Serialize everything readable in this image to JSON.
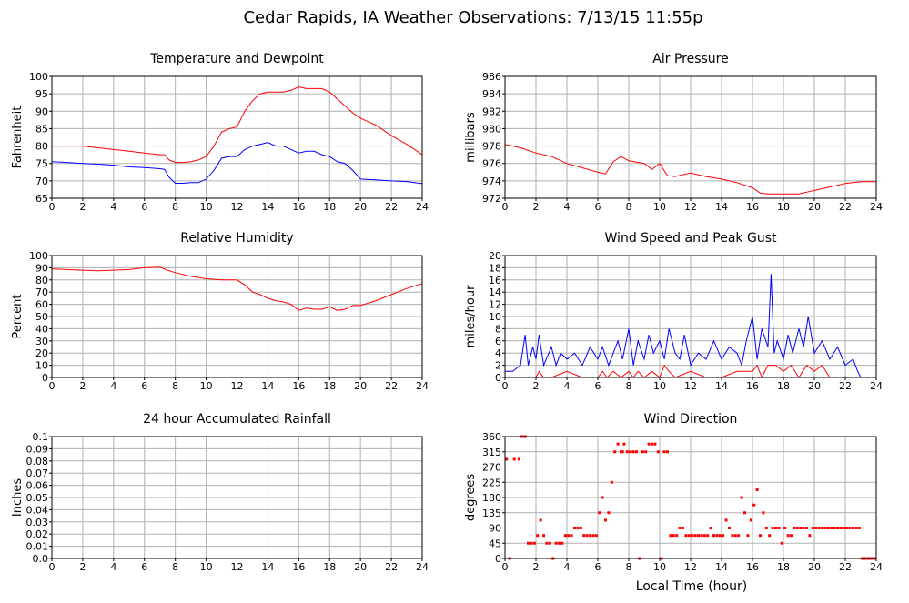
{
  "title": "Cedar Rapids, IA Weather Observations: 7/13/15 11:55p",
  "x_axis_label": "Local Time (hour)",
  "colors": {
    "red": "#ff0000",
    "blue": "#0000ff",
    "grid": "#b0b0b0",
    "frame": "#000000"
  },
  "chart_data": [
    {
      "type": "line",
      "title": "Temperature and Dewpoint",
      "ylabel": "Fahrenheit",
      "xlim": [
        0,
        24
      ],
      "ylim": [
        65,
        100
      ],
      "x_ticks": [
        0,
        2,
        4,
        6,
        8,
        10,
        12,
        14,
        16,
        18,
        20,
        22,
        24
      ],
      "y_ticks": [
        65,
        70,
        75,
        80,
        85,
        90,
        95,
        100
      ],
      "grid": true,
      "series": [
        {
          "color": "red",
          "x": [
            0,
            1,
            2,
            3,
            4,
            5,
            6,
            7,
            7.3,
            7.6,
            8,
            8.5,
            9,
            9.5,
            10,
            10.5,
            11,
            11.5,
            12,
            12.5,
            13,
            13.5,
            14,
            14.5,
            15,
            15.5,
            16,
            16.5,
            17,
            17.5,
            18,
            18.5,
            19,
            19.5,
            20,
            21,
            22,
            23,
            24
          ],
          "values": [
            80,
            80,
            80,
            79.5,
            79,
            78.5,
            78,
            77.5,
            77.5,
            76,
            75.3,
            75.3,
            75.5,
            76,
            77,
            80,
            84,
            85,
            85.5,
            90,
            93,
            95,
            95.5,
            95.5,
            95.5,
            96,
            97,
            96.5,
            96.5,
            96.5,
            95.5,
            93.5,
            91.5,
            89.5,
            88,
            86,
            83,
            80.5,
            77.5
          ]
        },
        {
          "color": "blue",
          "x": [
            0,
            1,
            2,
            3,
            4,
            5,
            6,
            7,
            7.3,
            7.6,
            8,
            8.5,
            9,
            9.5,
            10,
            10.5,
            11,
            11.5,
            12,
            12.5,
            13,
            13.5,
            14,
            14.5,
            15,
            15.5,
            16,
            16.5,
            17,
            17.5,
            18,
            18.5,
            19,
            19.5,
            20,
            21,
            22,
            23,
            24
          ],
          "values": [
            75.5,
            75.3,
            75,
            74.8,
            74.5,
            74,
            73.8,
            73.5,
            73.3,
            71,
            69.3,
            69.3,
            69.5,
            69.5,
            70.5,
            73,
            76.5,
            77,
            77,
            79,
            80,
            80.5,
            81,
            80,
            80,
            79,
            78,
            78.5,
            78.5,
            77.5,
            77,
            75.5,
            75,
            73,
            70.5,
            70.3,
            70,
            69.8,
            69.2
          ]
        }
      ]
    },
    {
      "type": "line",
      "title": "Air Pressure",
      "ylabel": "millibars",
      "xlim": [
        0,
        24
      ],
      "ylim": [
        972,
        986
      ],
      "x_ticks": [
        0,
        2,
        4,
        6,
        8,
        10,
        12,
        14,
        16,
        18,
        20,
        22,
        24
      ],
      "y_ticks": [
        972,
        974,
        976,
        978,
        980,
        982,
        984,
        986
      ],
      "grid": true,
      "series": [
        {
          "color": "red",
          "x": [
            0,
            1,
            2,
            3,
            4,
            5,
            6,
            6.5,
            7,
            7.5,
            8,
            9,
            9.5,
            10,
            10.5,
            11,
            12,
            13,
            14,
            15,
            16,
            16.5,
            17,
            18,
            19,
            20,
            21,
            22,
            23,
            24
          ],
          "values": [
            978.2,
            977.8,
            977.2,
            976.8,
            976,
            975.5,
            975,
            974.8,
            976.2,
            976.8,
            976.3,
            976,
            975.3,
            976,
            974.6,
            974.5,
            974.9,
            974.5,
            974.2,
            973.8,
            973.2,
            972.6,
            972.5,
            972.5,
            972.5,
            972.9,
            973.3,
            973.7,
            973.9,
            973.9
          ]
        }
      ]
    },
    {
      "type": "line",
      "title": "Relative Humidity",
      "ylabel": "Percent",
      "xlim": [
        0,
        24
      ],
      "ylim": [
        0,
        100
      ],
      "x_ticks": [
        0,
        2,
        4,
        6,
        8,
        10,
        12,
        14,
        16,
        18,
        20,
        22,
        24
      ],
      "y_ticks": [
        0,
        10,
        20,
        30,
        40,
        50,
        60,
        70,
        80,
        90,
        100
      ],
      "grid": true,
      "series": [
        {
          "color": "red",
          "x": [
            0,
            1,
            2,
            3,
            4,
            5,
            6,
            7,
            7.5,
            8,
            9,
            10,
            11,
            12,
            12.5,
            13,
            13.5,
            14,
            14.5,
            15,
            15.5,
            16,
            16.5,
            17,
            17.5,
            18,
            18.5,
            19,
            19.5,
            20,
            21,
            22,
            23,
            24
          ],
          "values": [
            89,
            88.5,
            88,
            87.5,
            88,
            88.5,
            90,
            90.5,
            88,
            86,
            83,
            81,
            80,
            80,
            76,
            70,
            68,
            65,
            63,
            62,
            60,
            55,
            57,
            56,
            56,
            58,
            55,
            56,
            59,
            59,
            63,
            68,
            73,
            77
          ]
        }
      ]
    },
    {
      "type": "line",
      "title": "Wind Speed and Peak Gust",
      "ylabel": "miles/hour",
      "xlim": [
        0,
        24
      ],
      "ylim": [
        0,
        20
      ],
      "x_ticks": [
        0,
        2,
        4,
        6,
        8,
        10,
        12,
        14,
        16,
        18,
        20,
        22,
        24
      ],
      "y_ticks": [
        0,
        2,
        4,
        6,
        8,
        10,
        12,
        14,
        16,
        18,
        20
      ],
      "grid": true,
      "series": [
        {
          "color": "blue",
          "x": [
            0,
            0.5,
            1,
            1.3,
            1.5,
            1.8,
            2,
            2.2,
            2.5,
            3,
            3.3,
            3.6,
            4,
            4.5,
            5,
            5.5,
            6,
            6.3,
            6.7,
            7,
            7.3,
            7.6,
            8,
            8.3,
            8.6,
            9,
            9.3,
            9.6,
            10,
            10.3,
            10.6,
            11,
            11.3,
            11.6,
            12,
            12.5,
            13,
            13.5,
            14,
            14.5,
            15,
            15.3,
            15.6,
            16,
            16.3,
            16.6,
            17,
            17.2,
            17.4,
            17.6,
            18,
            18.3,
            18.6,
            19,
            19.3,
            19.6,
            20,
            20.5,
            21,
            21.5,
            22,
            22.5,
            22.8,
            23,
            24
          ],
          "values": [
            1,
            1,
            2,
            7,
            2,
            5,
            3,
            7,
            2,
            5,
            2,
            4,
            3,
            4,
            2,
            5,
            3,
            5,
            2,
            4,
            6,
            3,
            8,
            2,
            6,
            3,
            7,
            4,
            6,
            3,
            8,
            4,
            3,
            7,
            2,
            4,
            3,
            6,
            3,
            5,
            4,
            2,
            6,
            10,
            3,
            8,
            5,
            17,
            4,
            6,
            3,
            7,
            4,
            8,
            5,
            10,
            4,
            6,
            3,
            5,
            2,
            3,
            1,
            0,
            0
          ]
        },
        {
          "color": "red",
          "x": [
            0,
            1,
            2,
            2.2,
            2.5,
            3,
            4,
            5,
            6,
            6.3,
            6.6,
            7,
            7.5,
            8,
            8.3,
            8.6,
            9,
            9.5,
            10,
            10.3,
            10.6,
            11,
            12,
            13,
            14,
            15,
            16,
            16.3,
            16.6,
            17,
            17.5,
            18,
            18.5,
            19,
            19.5,
            20,
            20.5,
            21,
            22,
            23,
            24
          ],
          "values": [
            0,
            0,
            0,
            1,
            0,
            0,
            1,
            0,
            0,
            1,
            0,
            1,
            0,
            1,
            0,
            1,
            0,
            1,
            0,
            2,
            1,
            0,
            1,
            0,
            0,
            1,
            1,
            2,
            0,
            2,
            2,
            1,
            2,
            0,
            2,
            1,
            2,
            0,
            0,
            0,
            0
          ]
        }
      ]
    },
    {
      "type": "line",
      "title": "24 hour Accumulated Rainfall",
      "ylabel": "Inches",
      "xlim": [
        0,
        24
      ],
      "ylim": [
        0,
        0.1
      ],
      "x_ticks": [
        0,
        2,
        4,
        6,
        8,
        10,
        12,
        14,
        16,
        18,
        20,
        22,
        24
      ],
      "y_ticks": [
        "0.0",
        "0.01",
        "0.02",
        "0.03",
        "0.04",
        "0.05",
        "0.06",
        "0.07",
        "0.08",
        "0.09",
        "0.1"
      ],
      "grid": true,
      "series": [
        {
          "color": "red",
          "x": [
            0,
            24
          ],
          "values": [
            0,
            0
          ]
        }
      ]
    },
    {
      "type": "scatter",
      "title": "Wind Direction",
      "ylabel": "degrees",
      "xlabel": "Local Time (hour)",
      "xlim": [
        0,
        24
      ],
      "ylim": [
        0,
        360
      ],
      "x_ticks": [
        0,
        2,
        4,
        6,
        8,
        10,
        12,
        14,
        16,
        18,
        20,
        22,
        24
      ],
      "y_ticks": [
        0,
        45,
        90,
        135,
        180,
        225,
        270,
        315,
        360
      ],
      "grid": true,
      "series": [
        {
          "color": "red",
          "x": [
            0.1,
            0.3,
            0.6,
            0.9,
            1.1,
            1.3,
            1.5,
            1.7,
            1.9,
            2.1,
            2.3,
            2.5,
            2.7,
            2.9,
            3.1,
            3.3,
            3.5,
            3.7,
            3.9,
            4.1,
            4.3,
            4.5,
            4.7,
            4.9,
            5.1,
            5.3,
            5.5,
            5.7,
            5.9,
            6.1,
            6.3,
            6.5,
            6.7,
            6.9,
            7.1,
            7.3,
            7.5,
            7.6,
            7.7,
            7.9,
            8.1,
            8.3,
            8.5,
            8.7,
            8.9,
            9.1,
            9.3,
            9.5,
            9.7,
            9.9,
            10.1,
            10.3,
            10.5,
            10.7,
            10.9,
            11.1,
            11.3,
            11.5,
            11.7,
            11.9,
            12.1,
            12.3,
            12.5,
            12.7,
            12.9,
            13.1,
            13.3,
            13.5,
            13.7,
            13.9,
            14.1,
            14.3,
            14.5,
            14.7,
            14.9,
            15.1,
            15.3,
            15.5,
            15.7,
            15.9,
            16.1,
            16.3,
            16.5,
            16.7,
            16.9,
            17.1,
            17.3,
            17.5,
            17.7,
            17.9,
            18.1,
            18.3,
            18.5,
            18.7,
            18.9,
            19.1,
            19.3,
            19.5,
            19.7,
            19.9,
            20.1,
            20.3,
            20.5,
            20.7,
            20.9,
            21.1,
            21.3,
            21.5,
            21.7,
            21.9,
            22.1,
            22.3,
            22.5,
            22.7,
            22.9,
            23.1,
            23.3,
            23.5,
            23.7,
            23.9
          ],
          "values": [
            293,
            0,
            293,
            293,
            360,
            360,
            45,
            45,
            45,
            68,
            113,
            68,
            45,
            45,
            0,
            45,
            45,
            45,
            68,
            68,
            68,
            90,
            90,
            90,
            68,
            68,
            68,
            68,
            68,
            135,
            180,
            113,
            135,
            225,
            315,
            338,
            315,
            315,
            338,
            315,
            315,
            315,
            315,
            0,
            315,
            315,
            338,
            338,
            338,
            315,
            0,
            315,
            315,
            68,
            68,
            68,
            90,
            90,
            68,
            68,
            68,
            68,
            68,
            68,
            68,
            68,
            90,
            68,
            68,
            68,
            68,
            113,
            90,
            68,
            68,
            68,
            180,
            135,
            68,
            113,
            158,
            203,
            68,
            135,
            90,
            68,
            90,
            90,
            90,
            45,
            90,
            68,
            68,
            90,
            90,
            90,
            90,
            90,
            68,
            90,
            90,
            90,
            90,
            90,
            90,
            90,
            90,
            90,
            90,
            90,
            90,
            90,
            90,
            90,
            90,
            0,
            0,
            0,
            0,
            0
          ]
        }
      ]
    }
  ]
}
